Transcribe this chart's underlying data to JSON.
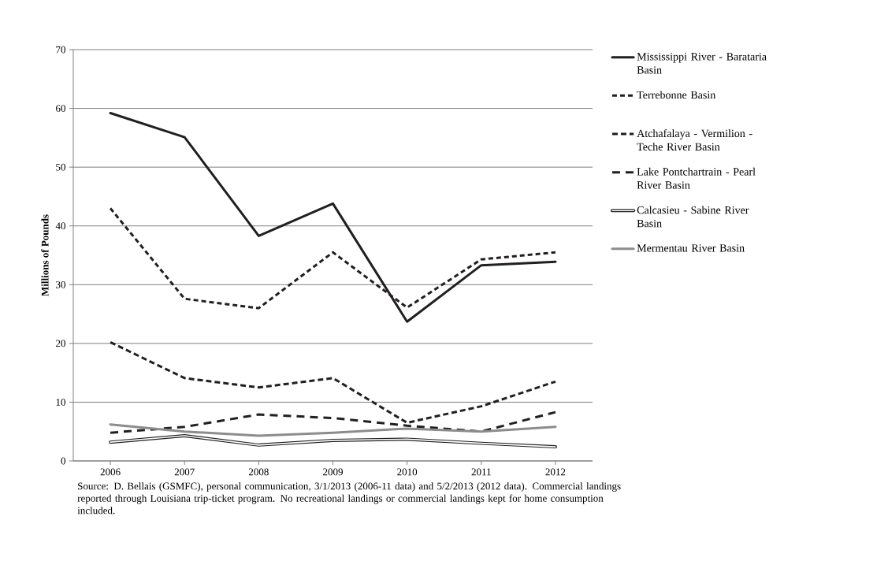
{
  "chart_data": {
    "type": "line",
    "ylabel": "Millions of Pounds",
    "categories": [
      "2006",
      "2007",
      "2008",
      "2009",
      "2010",
      "2011",
      "2012"
    ],
    "series": [
      {
        "name": "Mississippi River - Barataria Basin",
        "color": "#231f20",
        "line_style": "solid",
        "values": [
          59.2,
          55.1,
          38.3,
          43.8,
          23.7,
          33.3,
          33.9
        ]
      },
      {
        "name": "Terrebonne Basin",
        "color": "#231f20",
        "line_style": "dashed",
        "values": [
          43.0,
          27.6,
          26.0,
          35.5,
          26.1,
          34.3,
          35.5
        ]
      },
      {
        "name": "Atchafalaya - Vermilion - Teche River Basin",
        "color": "#231f20",
        "line_style": "dashed",
        "values": [
          20.2,
          14.1,
          12.5,
          14.1,
          6.5,
          9.3,
          13.5
        ]
      },
      {
        "name": "Lake Pontchartrain - Pearl River Basin",
        "color": "#231f20",
        "line_style": "dashed",
        "values": [
          4.8,
          5.8,
          7.9,
          7.3,
          6.0,
          5.0,
          8.3
        ]
      },
      {
        "name": "Calcasieu - Sabine River Basin",
        "color": "#231f20",
        "line_style": "solid",
        "values": [
          3.2,
          4.3,
          2.7,
          3.5,
          3.7,
          3.0,
          2.4
        ]
      },
      {
        "name": "Mermentau River Basin",
        "color": "#8c8c8c",
        "line_style": "solid",
        "values": [
          6.2,
          5.0,
          4.3,
          4.8,
          5.5,
          5.0,
          5.8
        ]
      }
    ],
    "ylim": [
      0,
      70
    ],
    "yticks": [
      0,
      10,
      20,
      30,
      40,
      50,
      60,
      70
    ],
    "grid": "y",
    "legend": "right",
    "marker": "none",
    "annotations": [
      "Source: D. Bellais (GSMFC), personal communication, 3/1/2013 (2006-11 data) and 5/2/2013 (2012 data).  Commercial landings reported through Louisiana trip-ticket program.  No recreational landings or commercial landings kept for home consumption included."
    ]
  }
}
